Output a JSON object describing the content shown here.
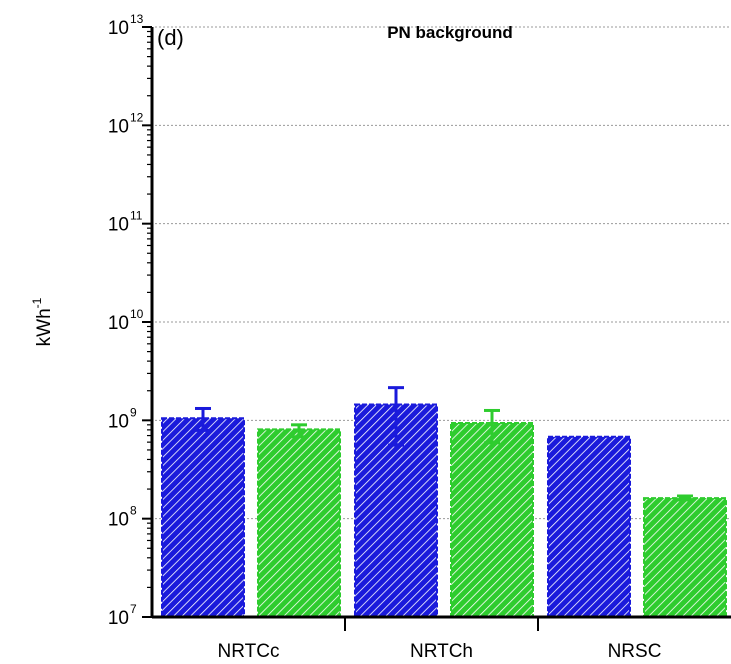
{
  "chart_data": {
    "type": "bar",
    "title": "PN background",
    "panel_label": "(d)",
    "ylabel": "kWh",
    "ylabel_sup": "-1",
    "yscale": "log",
    "ylim": [
      10000000,
      10000000000000
    ],
    "y_exponents": [
      7,
      8,
      9,
      10,
      11,
      12,
      13
    ],
    "grid": true,
    "categories": [
      "NRTCc",
      "NRTCh",
      "NRSC"
    ],
    "series": [
      {
        "color": "#1a1adb",
        "values": [
          1050000000,
          1450000000,
          680000000
        ],
        "err_high": [
          1320000000,
          2150000000,
          null
        ],
        "err_low": [
          790000000,
          560000000,
          null
        ]
      },
      {
        "color": "#2ecc2e",
        "values": [
          810000000,
          940000000,
          162000000
        ],
        "err_high": [
          900000000,
          1260000000,
          170000000
        ],
        "err_low": [
          680000000,
          590000000,
          155000000
        ]
      }
    ]
  }
}
